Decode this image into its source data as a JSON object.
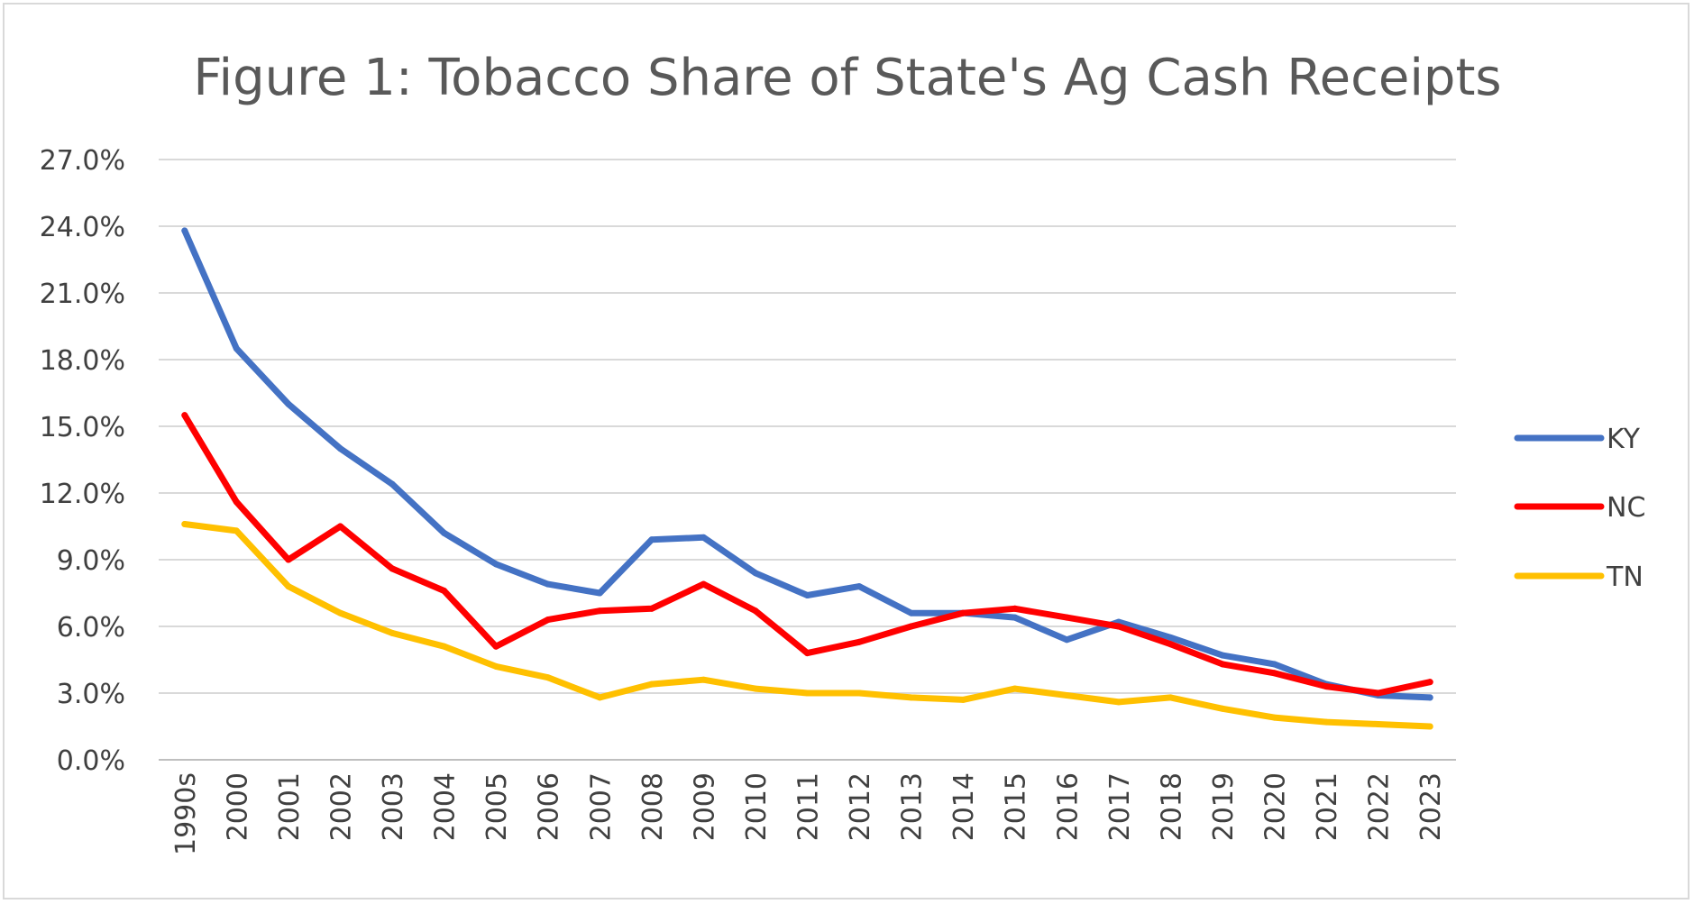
{
  "chart_data": {
    "type": "line",
    "title": "Figure 1: Tobacco Share of State's Ag Cash Receipts",
    "xlabel": "",
    "ylabel": "",
    "categories": [
      "1990s",
      "2000",
      "2001",
      "2002",
      "2003",
      "2004",
      "2005",
      "2006",
      "2007",
      "2008",
      "2009",
      "2010",
      "2011",
      "2012",
      "2013",
      "2014",
      "2015",
      "2016",
      "2017",
      "2018",
      "2019",
      "2020",
      "2021",
      "2022",
      "2023"
    ],
    "y_ticks": [
      "0.0%",
      "3.0%",
      "6.0%",
      "9.0%",
      "12.0%",
      "15.0%",
      "18.0%",
      "21.0%",
      "24.0%",
      "27.0%"
    ],
    "ylim": [
      0,
      27
    ],
    "y_unit": "percent",
    "grid": "horizontal",
    "legend_position": "right",
    "series": [
      {
        "name": "KY",
        "color": "#4472c4",
        "values": [
          23.8,
          18.5,
          16.0,
          14.0,
          12.4,
          10.2,
          8.8,
          7.9,
          7.5,
          9.9,
          10.0,
          8.4,
          7.4,
          7.8,
          6.6,
          6.6,
          6.4,
          5.4,
          6.2,
          5.5,
          4.7,
          4.3,
          3.4,
          2.9,
          2.8
        ]
      },
      {
        "name": "NC",
        "color": "#ff0000",
        "values": [
          15.5,
          11.6,
          9.0,
          10.5,
          8.6,
          7.6,
          5.1,
          6.3,
          6.7,
          6.8,
          7.9,
          6.7,
          4.8,
          5.3,
          6.0,
          6.6,
          6.8,
          6.4,
          6.0,
          5.2,
          4.3,
          3.9,
          3.3,
          3.0,
          3.5
        ]
      },
      {
        "name": "TN",
        "color": "#ffc000",
        "values": [
          10.6,
          10.3,
          7.8,
          6.6,
          5.7,
          5.1,
          4.2,
          3.7,
          2.8,
          3.4,
          3.6,
          3.2,
          3.0,
          3.0,
          2.8,
          2.7,
          3.2,
          2.9,
          2.6,
          2.8,
          2.3,
          1.9,
          1.7,
          1.6,
          1.5
        ]
      }
    ]
  }
}
